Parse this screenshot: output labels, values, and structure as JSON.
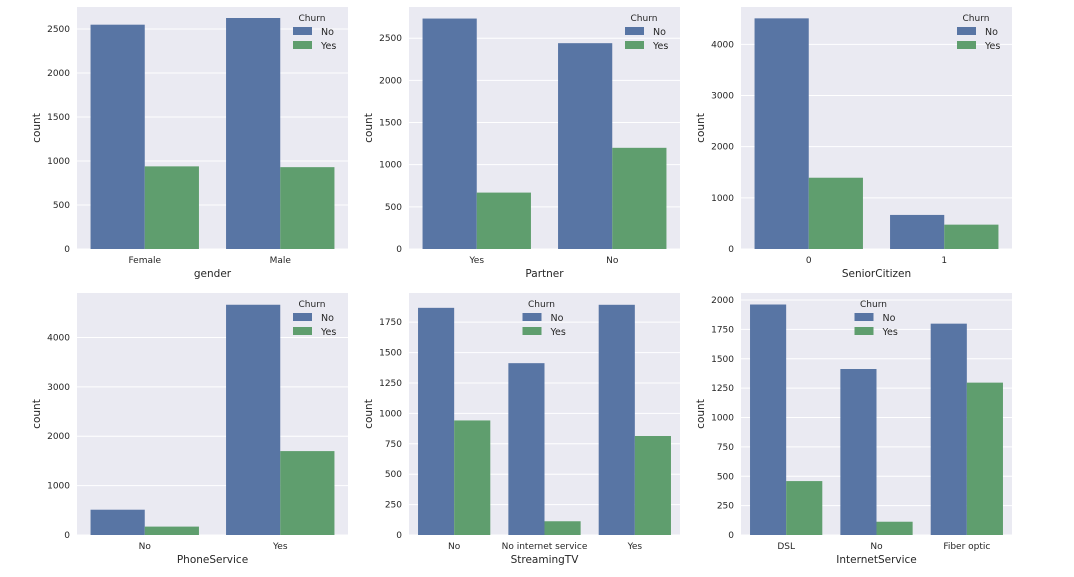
{
  "colors": {
    "No": "#5875a4",
    "Yes": "#5f9e6e",
    "panel": "#eaeaf2",
    "grid": "#ffffff"
  },
  "legend_title": "Churn",
  "series_names": [
    "No",
    "Yes"
  ],
  "chart_data": [
    {
      "type": "bar",
      "xlabel": "gender",
      "ylabel": "count",
      "categories": [
        "Female",
        "Male"
      ],
      "series": [
        {
          "name": "No",
          "values": [
            2549,
            2625
          ]
        },
        {
          "name": "Yes",
          "values": [
            939,
            930
          ]
        }
      ],
      "ylim": [
        0,
        2750
      ],
      "yticks": [
        0,
        500,
        1000,
        1500,
        2000,
        2500
      ],
      "grid": true,
      "legend": "top-right"
    },
    {
      "type": "bar",
      "xlabel": "Partner",
      "ylabel": "count",
      "categories": [
        "Yes",
        "No"
      ],
      "series": [
        {
          "name": "No",
          "values": [
            2733,
            2441
          ]
        },
        {
          "name": "Yes",
          "values": [
            669,
            1200
          ]
        }
      ],
      "ylim": [
        0,
        2870
      ],
      "yticks": [
        0,
        500,
        1000,
        1500,
        2000,
        2500
      ],
      "grid": true,
      "legend": "top-right"
    },
    {
      "type": "bar",
      "xlabel": "SeniorCitizen",
      "ylabel": "count",
      "categories": [
        "0",
        "1"
      ],
      "series": [
        {
          "name": "No",
          "values": [
            4508,
            666
          ]
        },
        {
          "name": "Yes",
          "values": [
            1393,
            476
          ]
        }
      ],
      "ylim": [
        0,
        4730
      ],
      "yticks": [
        0,
        1000,
        2000,
        3000,
        4000
      ],
      "grid": true,
      "legend": "top-right"
    },
    {
      "type": "bar",
      "xlabel": "PhoneService",
      "ylabel": "count",
      "categories": [
        "No",
        "Yes"
      ],
      "series": [
        {
          "name": "No",
          "values": [
            512,
            4662
          ]
        },
        {
          "name": "Yes",
          "values": [
            170,
            1699
          ]
        }
      ],
      "ylim": [
        0,
        4900
      ],
      "yticks": [
        0,
        1000,
        2000,
        3000,
        4000
      ],
      "grid": true,
      "legend": "top-right"
    },
    {
      "type": "bar",
      "xlabel": "StreamingTV",
      "ylabel": "count",
      "categories": [
        "No",
        "No internet service",
        "Yes"
      ],
      "series": [
        {
          "name": "No",
          "values": [
            1868,
            1413,
            1893
          ]
        },
        {
          "name": "Yes",
          "values": [
            942,
            113,
            814
          ]
        }
      ],
      "ylim": [
        0,
        1990
      ],
      "yticks": [
        0,
        250,
        500,
        750,
        1000,
        1250,
        1500,
        1750
      ],
      "grid": true,
      "legend": "top-center"
    },
    {
      "type": "bar",
      "xlabel": "InternetService",
      "ylabel": "count",
      "categories": [
        "DSL",
        "No",
        "Fiber optic"
      ],
      "series": [
        {
          "name": "No",
          "values": [
            1962,
            1413,
            1799
          ]
        },
        {
          "name": "Yes",
          "values": [
            459,
            113,
            1297
          ]
        }
      ],
      "ylim": [
        0,
        2060
      ],
      "yticks": [
        0,
        250,
        500,
        750,
        1000,
        1250,
        1500,
        1750,
        2000
      ],
      "grid": true,
      "legend": "top-center"
    }
  ]
}
